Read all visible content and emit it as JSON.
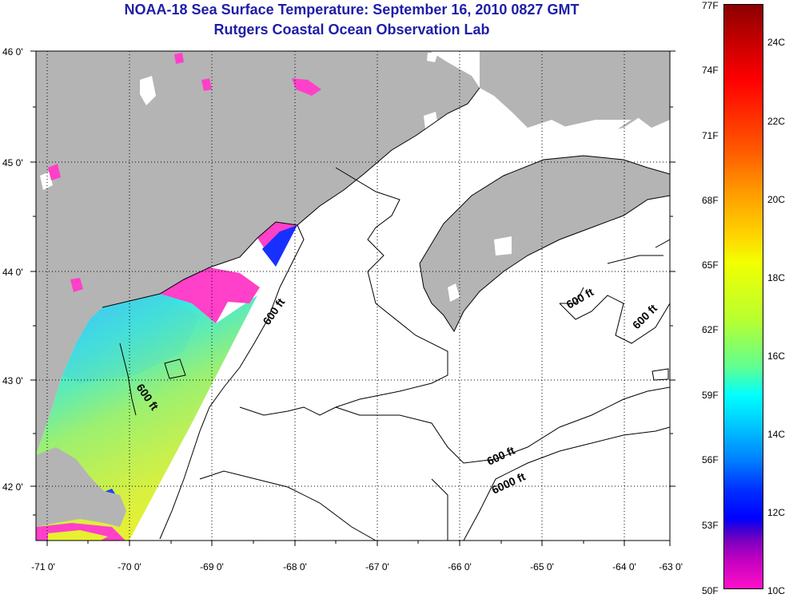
{
  "header": {
    "title_line1": "NOAA-18 Sea Surface Temperature:  September 16, 2010 0827 GMT",
    "title_line2": "Rutgers Coastal Ocean Observation Lab"
  },
  "map": {
    "lon_range": [
      -71.1,
      -62.9
    ],
    "lat_range": [
      41.55,
      46.0
    ],
    "lon_ticks": [
      "-71 0'",
      "-70 0'",
      "-69 0'",
      "-68 0'",
      "-67 0'",
      "-66 0'",
      "-65 0'",
      "-64 0'",
      "-63 0'"
    ],
    "lat_ticks": [
      "46 0'",
      "45 0'",
      "44 0'",
      "43 0'",
      "42 0'"
    ],
    "grid": "dotted",
    "land_color": "#b4b4b4",
    "contour_labels": [
      "600 ft",
      "600 ft",
      "600 ft",
      "600 ft",
      "600 ft",
      "6000 ft"
    ]
  },
  "colorbar": {
    "fahrenheit_labels": [
      "77F",
      "74F",
      "71F",
      "68F",
      "65F",
      "62F",
      "59F",
      "56F",
      "53F",
      "50F"
    ],
    "celsius_labels": [
      "24C",
      "22C",
      "20C",
      "18C",
      "16C",
      "14C",
      "12C",
      "10C"
    ]
  }
}
